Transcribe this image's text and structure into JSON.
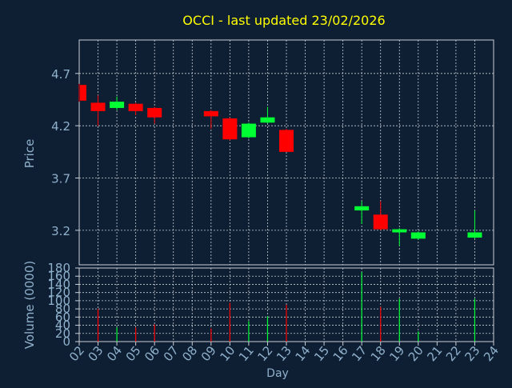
{
  "colors": {
    "background": "#0f1f33",
    "title": "#ffff00",
    "axis_text": "#8fb1cc",
    "frame": "#c8ced6",
    "grid": "#c8ced6",
    "up": "#00ff33",
    "down": "#ff0000"
  },
  "chart_data": [
    {
      "type": "candlestick",
      "title": "OCCI - last updated 23/02/2026",
      "ylabel": "Price",
      "xlim": [
        2,
        24
      ],
      "ylim": [
        2.87,
        5.02
      ],
      "yticks": [
        3.2,
        3.7,
        4.2,
        4.7
      ],
      "ytick_labels": [
        "3.2",
        "3.7",
        "4.2",
        "4.7"
      ],
      "grid": true,
      "candles": [
        {
          "day": 2,
          "open": 4.59,
          "close": 4.44,
          "high": 4.6,
          "low": 4.43
        },
        {
          "day": 3,
          "open": 4.42,
          "close": 4.34,
          "high": 4.49,
          "low": 4.2
        },
        {
          "day": 4,
          "open": 4.37,
          "close": 4.43,
          "high": 4.48,
          "low": 4.35
        },
        {
          "day": 5,
          "open": 4.41,
          "close": 4.34,
          "high": 4.42,
          "low": 4.3
        },
        {
          "day": 6,
          "open": 4.37,
          "close": 4.28,
          "high": 4.38,
          "low": 4.22
        },
        {
          "day": 9,
          "open": 4.34,
          "close": 4.29,
          "high": 4.35,
          "low": 4.17
        },
        {
          "day": 10,
          "open": 4.27,
          "close": 4.07,
          "high": 4.28,
          "low": 4.06
        },
        {
          "day": 11,
          "open": 4.09,
          "close": 4.22,
          "high": 4.23,
          "low": 4.08
        },
        {
          "day": 12,
          "open": 4.23,
          "close": 4.28,
          "high": 4.38,
          "low": 4.22
        },
        {
          "day": 13,
          "open": 4.16,
          "close": 3.95,
          "high": 4.17,
          "low": 3.95
        },
        {
          "day": 17,
          "open": 3.39,
          "close": 3.43,
          "high": 3.48,
          "low": 3.26
        },
        {
          "day": 18,
          "open": 3.35,
          "close": 3.21,
          "high": 3.48,
          "low": 3.2
        },
        {
          "day": 19,
          "open": 3.18,
          "close": 3.21,
          "high": 3.22,
          "low": 3.05
        },
        {
          "day": 20,
          "open": 3.12,
          "close": 3.18,
          "high": 3.19,
          "low": 3.11
        },
        {
          "day": 23,
          "open": 3.13,
          "close": 3.18,
          "high": 3.39,
          "low": 3.12
        }
      ]
    },
    {
      "type": "bar",
      "ylabel": "Volume (0000)",
      "xlabel": "Day",
      "ylim": [
        0,
        180
      ],
      "yticks": [
        0,
        20,
        40,
        60,
        80,
        100,
        120,
        140,
        160,
        180
      ],
      "ytick_labels": [
        "0",
        "20",
        "40",
        "60",
        "80",
        "100",
        "120",
        "140",
        "160",
        "180"
      ],
      "x": [
        "02",
        "03",
        "04",
        "05",
        "06",
        "07",
        "08",
        "09",
        "10",
        "11",
        "12",
        "13",
        "14",
        "15",
        "16",
        "17",
        "18",
        "19",
        "20",
        "21",
        "22",
        "23",
        "24"
      ],
      "volumes": [
        {
          "day": 3,
          "value": 80,
          "direction": "down"
        },
        {
          "day": 4,
          "value": 35,
          "direction": "up"
        },
        {
          "day": 5,
          "value": 35,
          "direction": "down"
        },
        {
          "day": 6,
          "value": 42,
          "direction": "down"
        },
        {
          "day": 9,
          "value": 32,
          "direction": "down"
        },
        {
          "day": 10,
          "value": 95,
          "direction": "down"
        },
        {
          "day": 11,
          "value": 50,
          "direction": "up"
        },
        {
          "day": 12,
          "value": 62,
          "direction": "up"
        },
        {
          "day": 13,
          "value": 90,
          "direction": "down"
        },
        {
          "day": 17,
          "value": 170,
          "direction": "up"
        },
        {
          "day": 18,
          "value": 85,
          "direction": "down"
        },
        {
          "day": 19,
          "value": 105,
          "direction": "up"
        },
        {
          "day": 20,
          "value": 25,
          "direction": "up"
        },
        {
          "day": 23,
          "value": 105,
          "direction": "up"
        }
      ]
    }
  ]
}
